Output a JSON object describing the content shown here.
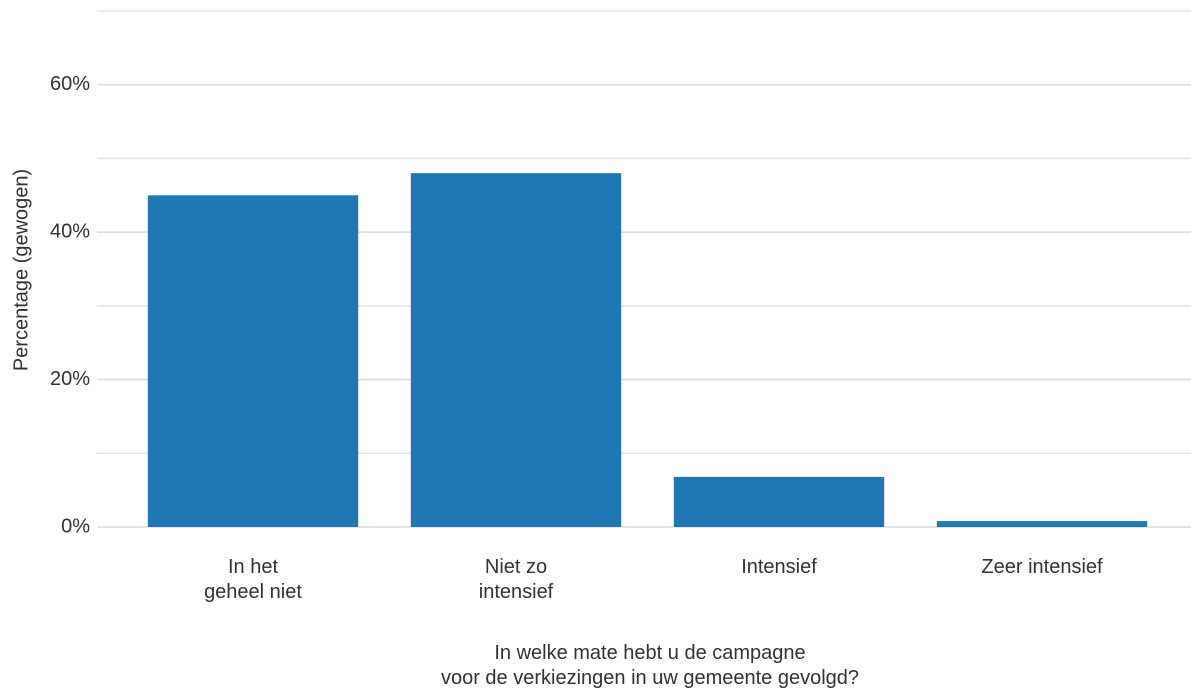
{
  "chart_data": {
    "type": "bar",
    "y_label": "Percentage (gewogen)",
    "x_label": "In welke mate hebt u de campagne\nvoor de verkiezingen in uw gemeente gevolgd?",
    "categories": [
      "In het\ngeheel niet",
      "Niet zo\nintensief",
      "Intensief",
      "Zeer intensief"
    ],
    "values": [
      45.0,
      48.0,
      6.8,
      0.8
    ],
    "color": "#1f77b4",
    "ylim": [
      0,
      70
    ],
    "yticks": [
      {
        "value": 0,
        "label": "0%"
      },
      {
        "value": 20,
        "label": "20%"
      },
      {
        "value": 40,
        "label": "40%"
      },
      {
        "value": 60,
        "label": "60%"
      }
    ],
    "minor_yticks": [
      10,
      30,
      50,
      70
    ],
    "grid": true
  }
}
